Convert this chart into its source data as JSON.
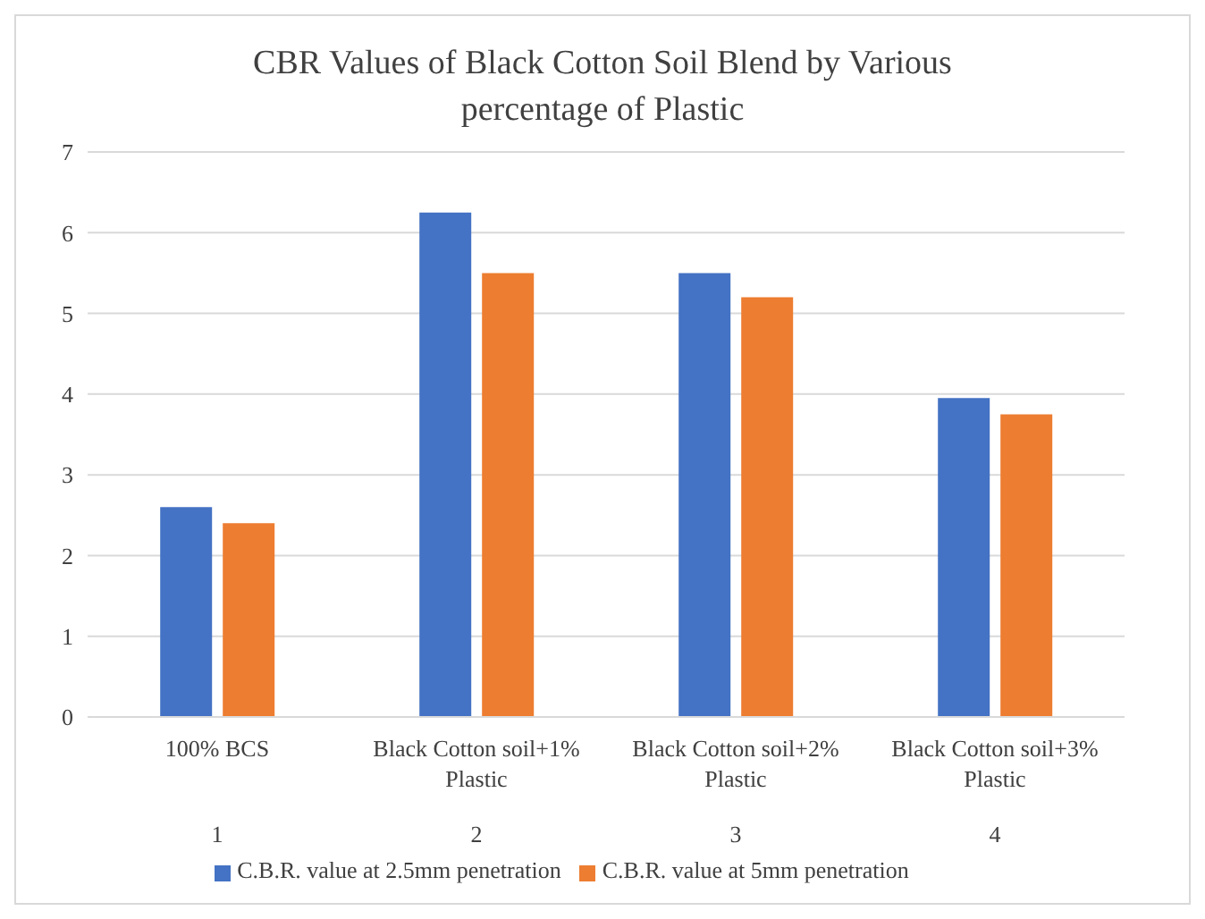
{
  "chart_data": {
    "type": "bar",
    "title": "CBR Values of Black Cotton Soil Blend by Various percentage of Plastic",
    "categories": [
      "100% BCS",
      "Black Cotton soil+1% Plastic",
      "Black Cotton soil+2% Plastic",
      "Black Cotton soil+3% Plastic"
    ],
    "series": [
      {
        "name": "C.B.R. value at 2.5mm penetration",
        "color": "#4472c4",
        "values": [
          2.6,
          6.25,
          5.5,
          3.95
        ]
      },
      {
        "name": "C.B.R. value at 5mm penetration",
        "color": "#ed7d31",
        "values": [
          2.4,
          5.5,
          5.2,
          3.75
        ]
      }
    ],
    "annotations": [
      "1",
      "2",
      "3",
      "4"
    ],
    "ylim": [
      0,
      7
    ],
    "yticks": [
      0,
      1,
      2,
      3,
      4,
      5,
      6,
      7
    ],
    "grid": "y",
    "legend": "bottom"
  }
}
